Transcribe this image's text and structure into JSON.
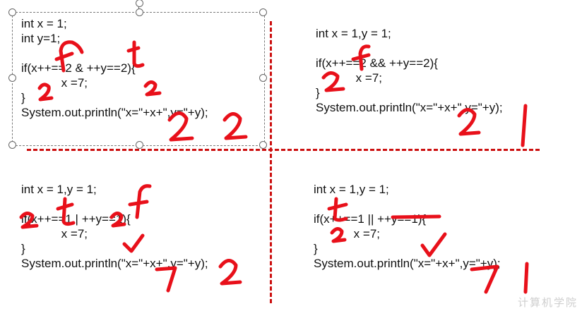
{
  "slide": {
    "quadrants": [
      {
        "lines": [
          "int x = 1;",
          "int y=1;",
          "",
          "if(x++==2 & ++y==2){",
          "            x =7;",
          "}",
          "System.out.println(\"x=\"+x+\",y=\"+y);"
        ]
      },
      {
        "lines": [
          "int x = 1,y = 1;",
          "",
          "if(x++==2 && ++y==2){",
          "            x =7;",
          "}",
          "System.out.println(\"x=\"+x+\",y=\"+y);"
        ]
      },
      {
        "lines": [
          "int x = 1,y = 1;",
          "",
          "if(x++==1 | ++y==1){",
          "            x =7;",
          "}",
          "System.out.println(\"x=\"+x+\",y=\"+y);"
        ]
      },
      {
        "lines": [
          "int x = 1,y = 1;",
          "",
          "if(x++==1 || ++y==1){",
          "            x =7;",
          "}",
          "System.out.println(\"x=\"+x+\",y=\"+y);"
        ]
      }
    ],
    "annotations": {
      "q1": [
        "2",
        "f",
        "t",
        "2",
        "2",
        "2"
      ],
      "q2": [
        "2",
        "f",
        "2",
        "1"
      ],
      "q3": [
        "2",
        "t",
        "2",
        "f",
        "7",
        "2"
      ],
      "q4": [
        "t",
        "2",
        "7",
        "1"
      ]
    },
    "ink_color": "#e8101a",
    "divider_color": "#cc1010",
    "watermark": "计算机学院"
  }
}
